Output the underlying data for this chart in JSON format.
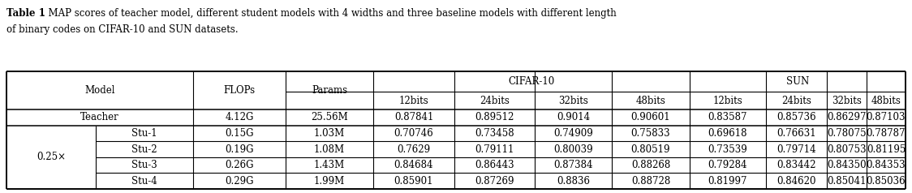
{
  "caption_bold": "Table 1",
  "caption_normal": ". MAP scores of teacher model, different student models with 4 widths and three baseline models with different length\nof binary codes on CIFAR-10 and SUN datasets.",
  "sub_labels": [
    "12bits",
    "24bits",
    "32bits",
    "48bits",
    "12bits",
    "24bits",
    "32bits",
    "48bits"
  ],
  "teacher_row": [
    "Teacher",
    "4.12G",
    "25.56M",
    "0.87841",
    "0.89512",
    "0.9014",
    "0.90601",
    "0.83587",
    "0.85736",
    "0.86297",
    "0.87103"
  ],
  "stu_rows": [
    [
      "Stu-1",
      "0.15G",
      "1.03M",
      "0.70746",
      "0.73458",
      "0.74909",
      "0.75833",
      "0.69618",
      "0.76631",
      "0.78075",
      "0.78787"
    ],
    [
      "Stu-2",
      "0.19G",
      "1.08M",
      "0.7629",
      "0.79111",
      "0.80039",
      "0.80519",
      "0.73539",
      "0.79714",
      "0.80753",
      "0.81195"
    ],
    [
      "Stu-3",
      "0.26G",
      "1.43M",
      "0.84684",
      "0.86443",
      "0.87384",
      "0.88268",
      "0.79284",
      "0.83442",
      "0.84350",
      "0.84353"
    ],
    [
      "Stu-4",
      "0.29G",
      "1.99M",
      "0.85901",
      "0.87269",
      "0.8836",
      "0.88728",
      "0.81997",
      "0.84620",
      "0.85041",
      "0.85036"
    ]
  ],
  "row_label": "0.25×",
  "background_color": "#ffffff",
  "font_family": "DejaVu Serif",
  "fontsize": 8.5,
  "fig_width": 11.24,
  "fig_height": 2.38,
  "dpi": 100
}
